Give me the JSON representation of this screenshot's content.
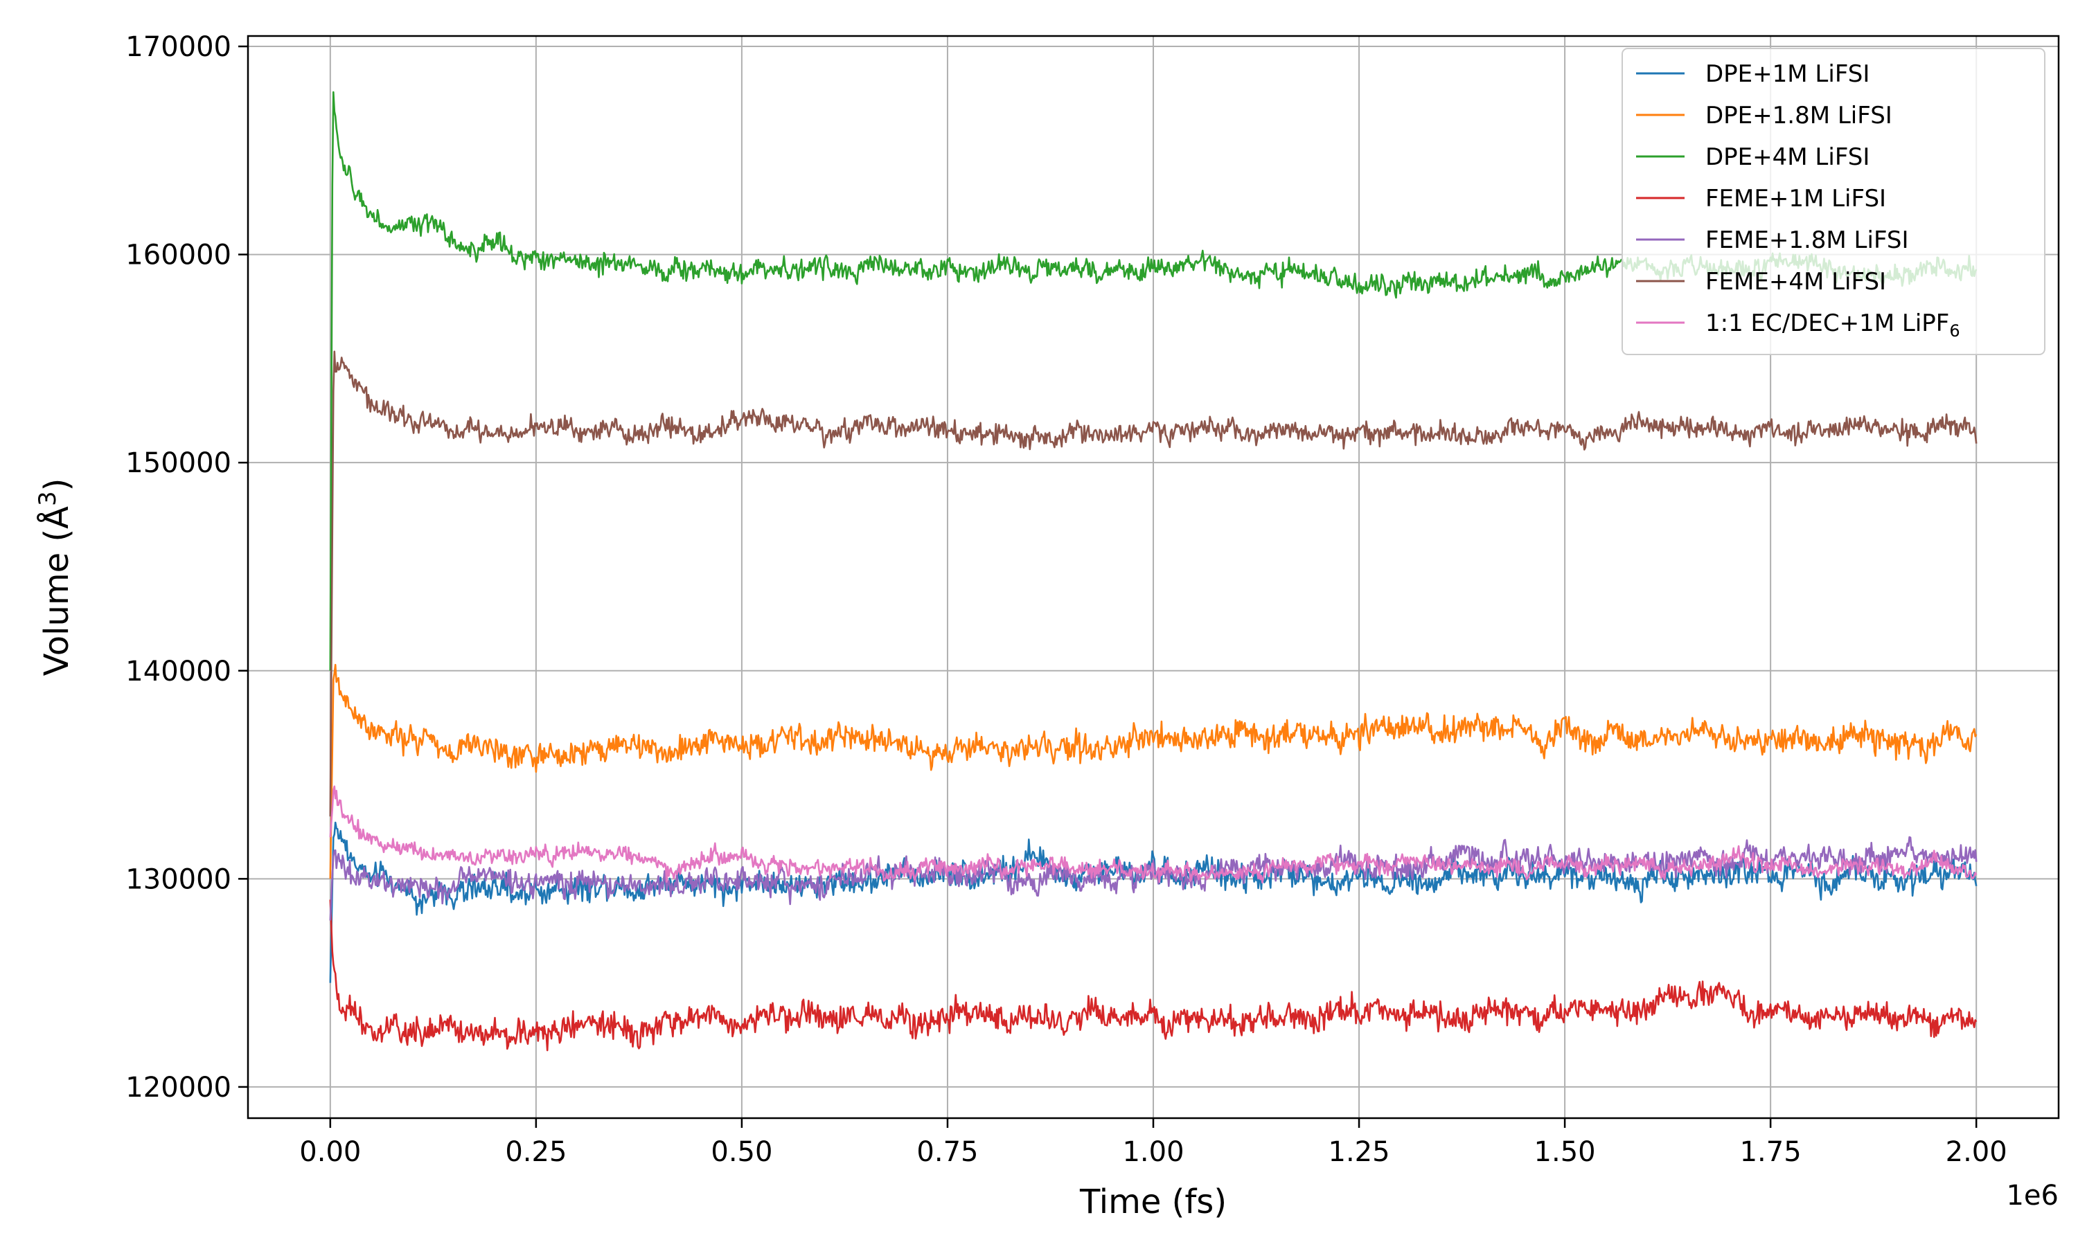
{
  "chart_data": {
    "type": "line",
    "xlabel": "Time (fs)",
    "ylabel_main": "Volume (Å",
    "ylabel_sup": "3",
    "ylabel_end": ")",
    "x_offset_label": "1e6",
    "xlim": [
      -0.1,
      2.1
    ],
    "ylim": [
      118500,
      170500
    ],
    "x_ticks": [
      0.0,
      0.25,
      0.5,
      0.75,
      1.0,
      1.25,
      1.5,
      1.75,
      2.0
    ],
    "x_tick_labels": [
      "0.00",
      "0.25",
      "0.50",
      "0.75",
      "1.00",
      "1.25",
      "1.50",
      "1.75",
      "2.00"
    ],
    "y_ticks": [
      120000,
      130000,
      140000,
      150000,
      160000,
      170000
    ],
    "y_tick_labels": [
      "120000",
      "130000",
      "140000",
      "150000",
      "160000",
      "170000"
    ],
    "grid": true,
    "legend_position": "top-right",
    "x_max": 2.0,
    "series": [
      {
        "name": "DPE+1M LiFSI",
        "color": "#1f77b4",
        "noise": 650,
        "key": [
          [
            0,
            125000
          ],
          [
            0.004,
            132500
          ],
          [
            0.02,
            131500
          ],
          [
            0.05,
            130000
          ],
          [
            0.1,
            129300
          ],
          [
            0.25,
            129500
          ],
          [
            0.5,
            130000
          ],
          [
            0.6,
            129700
          ],
          [
            0.75,
            130300
          ],
          [
            1.0,
            130400
          ],
          [
            1.25,
            130000
          ],
          [
            1.5,
            130200
          ],
          [
            1.75,
            130200
          ],
          [
            2.0,
            130300
          ]
        ]
      },
      {
        "name": "DPE+1.8M LiFSI",
        "color": "#ff7f0e",
        "noise": 650,
        "key": [
          [
            0,
            130000
          ],
          [
            0.004,
            140000
          ],
          [
            0.02,
            138500
          ],
          [
            0.05,
            137300
          ],
          [
            0.1,
            136700
          ],
          [
            0.2,
            136300
          ],
          [
            0.25,
            136000
          ],
          [
            0.5,
            136500
          ],
          [
            0.6,
            136700
          ],
          [
            0.75,
            136300
          ],
          [
            0.9,
            136200
          ],
          [
            1.0,
            136800
          ],
          [
            1.25,
            137000
          ],
          [
            1.5,
            137000
          ],
          [
            1.75,
            136900
          ],
          [
            2.0,
            136600
          ]
        ]
      },
      {
        "name": "DPE+4M LiFSI",
        "color": "#2ca02c",
        "noise": 500,
        "key": [
          [
            0,
            140000
          ],
          [
            0.003,
            168000
          ],
          [
            0.01,
            165000
          ],
          [
            0.03,
            163000
          ],
          [
            0.06,
            161600
          ],
          [
            0.15,
            160800
          ],
          [
            0.25,
            159700
          ],
          [
            0.5,
            159300
          ],
          [
            0.75,
            159300
          ],
          [
            1.0,
            159300
          ],
          [
            1.25,
            158700
          ],
          [
            1.4,
            158700
          ],
          [
            1.6,
            159500
          ],
          [
            1.75,
            159400
          ],
          [
            2.0,
            159100
          ]
        ]
      },
      {
        "name": "FEME+1M LiFSI",
        "color": "#d62728",
        "noise": 650,
        "key": [
          [
            0,
            129000
          ],
          [
            0.003,
            126000
          ],
          [
            0.01,
            123800
          ],
          [
            0.05,
            122600
          ],
          [
            0.15,
            122600
          ],
          [
            0.25,
            122700
          ],
          [
            0.5,
            123300
          ],
          [
            0.75,
            123400
          ],
          [
            1.0,
            123300
          ],
          [
            1.25,
            123500
          ],
          [
            1.5,
            123500
          ],
          [
            1.65,
            124200
          ],
          [
            1.75,
            123700
          ],
          [
            2.0,
            123300
          ]
        ]
      },
      {
        "name": "FEME+1.8M LiFSI",
        "color": "#9467bd",
        "noise": 600,
        "key": [
          [
            0,
            128000
          ],
          [
            0.004,
            131500
          ],
          [
            0.02,
            130300
          ],
          [
            0.1,
            129700
          ],
          [
            0.25,
            129800
          ],
          [
            0.5,
            129800
          ],
          [
            0.75,
            130300
          ],
          [
            1.0,
            130200
          ],
          [
            1.25,
            130700
          ],
          [
            1.5,
            130800
          ],
          [
            1.75,
            131000
          ],
          [
            2.0,
            131200
          ]
        ]
      },
      {
        "name": "FEME+4M LiFSI",
        "color": "#8c564b",
        "noise": 500,
        "key": [
          [
            0,
            133000
          ],
          [
            0.004,
            155000
          ],
          [
            0.02,
            154300
          ],
          [
            0.05,
            152800
          ],
          [
            0.1,
            151800
          ],
          [
            0.25,
            151500
          ],
          [
            0.5,
            151800
          ],
          [
            0.75,
            151500
          ],
          [
            0.9,
            151200
          ],
          [
            1.0,
            151500
          ],
          [
            1.25,
            151500
          ],
          [
            1.5,
            151500
          ],
          [
            1.75,
            151600
          ],
          [
            2.0,
            151500
          ]
        ]
      },
      {
        "name": "1:1 EC/DEC+1M LiPF",
        "name_sub": "6",
        "color": "#e377c2",
        "noise": 420,
        "key": [
          [
            0,
            132000
          ],
          [
            0.004,
            134200
          ],
          [
            0.02,
            133000
          ],
          [
            0.05,
            131800
          ],
          [
            0.15,
            131200
          ],
          [
            0.25,
            131000
          ],
          [
            0.5,
            130900
          ],
          [
            0.6,
            130600
          ],
          [
            0.75,
            130500
          ],
          [
            1.0,
            130300
          ],
          [
            1.25,
            130600
          ],
          [
            1.5,
            130700
          ],
          [
            1.75,
            130700
          ],
          [
            2.0,
            130500
          ]
        ]
      }
    ]
  }
}
